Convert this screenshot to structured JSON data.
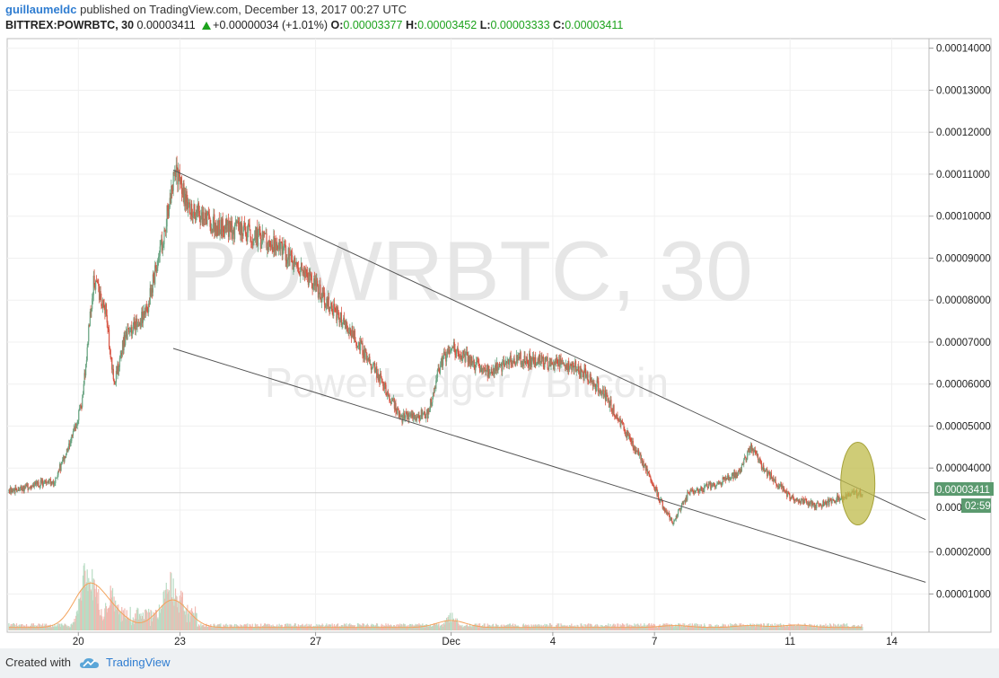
{
  "header": {
    "author": "guillaumeldc",
    "published_text": "published on TradingView.com, December 13, 2017 00:27 UTC"
  },
  "symbol_bar": {
    "symbol": "BITTREX:POWRBTC, 30",
    "price": "0.00003411",
    "change": "+0.00000034 (+1.01%)",
    "o_label": "O:",
    "o_value": "0.00003377",
    "h_label": "H:",
    "h_value": "0.00003452",
    "l_label": "L:",
    "l_value": "0.00003333",
    "c_label": "C:",
    "c_value": "0.00003411"
  },
  "watermark": {
    "line1": "POWRBTC, 30",
    "line2": "PowerLedger / Bitcoin"
  },
  "price_tag": {
    "value": "0.00003411",
    "countdown": "02:59",
    "color": "#5b9a6f"
  },
  "chart_data": {
    "type": "candlestick",
    "y_axis": {
      "side": "right",
      "ticks": [
        "0.00014000",
        "0.00013000",
        "0.00012000",
        "0.00011000",
        "0.00010000",
        "0.00009000",
        "0.00008000",
        "0.00007000",
        "0.00006000",
        "0.00005000",
        "0.00004000",
        "0.00002000",
        "0.00001000"
      ],
      "tick_values": [
        0.00014,
        0.00013,
        0.00012,
        0.00011,
        0.0001,
        9e-05,
        8e-05,
        7e-05,
        6e-05,
        5e-05,
        4e-05,
        2e-05,
        1e-05
      ],
      "partial_tick": "0.000",
      "range": [
        9e-07,
        0.0001425
      ]
    },
    "x_axis": {
      "ticks": [
        "20",
        "23",
        "27",
        "Dec",
        "4",
        "7",
        "11",
        "14"
      ],
      "tick_days": [
        20,
        23,
        27,
        31,
        34,
        37,
        41,
        44
      ],
      "range_days": [
        17.9,
        45.1
      ]
    },
    "price_path": [
      [
        17.95,
        3.45e-05
      ],
      [
        18.5,
        3.55e-05
      ],
      [
        19.3,
        3.7e-05
      ],
      [
        19.7,
        4.5e-05
      ],
      [
        20.1,
        5.5e-05
      ],
      [
        20.45,
        8.5e-05
      ],
      [
        20.8,
        7.8e-05
      ],
      [
        21.05,
        6e-05
      ],
      [
        21.4,
        7.2e-05
      ],
      [
        22.0,
        7.7e-05
      ],
      [
        22.5,
        9.5e-05
      ],
      [
        22.85,
        0.000111
      ],
      [
        23.2,
        0.000103
      ],
      [
        24.0,
        9.8e-05
      ],
      [
        25.0,
        9.6e-05
      ],
      [
        26.0,
        9.2e-05
      ],
      [
        27.0,
        8.3e-05
      ],
      [
        28.0,
        7.3e-05
      ],
      [
        28.8,
        6.3e-05
      ],
      [
        29.5,
        5.2e-05
      ],
      [
        30.3,
        5.3e-05
      ],
      [
        30.7,
        6.5e-05
      ],
      [
        31.0,
        6.9e-05
      ],
      [
        31.5,
        6.6e-05
      ],
      [
        32.0,
        6.3e-05
      ],
      [
        33.0,
        6.6e-05
      ],
      [
        34.0,
        6.5e-05
      ],
      [
        34.7,
        6.4e-05
      ],
      [
        35.5,
        5.8e-05
      ],
      [
        36.2,
        4.8e-05
      ],
      [
        36.8,
        3.9e-05
      ],
      [
        37.3,
        3e-05
      ],
      [
        37.55,
        2.7e-05
      ],
      [
        38.0,
        3.4e-05
      ],
      [
        38.8,
        3.6e-05
      ],
      [
        39.5,
        3.9e-05
      ],
      [
        39.85,
        4.5e-05
      ],
      [
        40.2,
        4e-05
      ],
      [
        41.0,
        3.3e-05
      ],
      [
        41.8,
        3.1e-05
      ],
      [
        42.5,
        3.3e-05
      ],
      [
        43.0,
        3.4e-05
      ],
      [
        43.15,
        3.41e-05
      ]
    ],
    "volume_spikes": [
      [
        20.2,
        0.45
      ],
      [
        20.4,
        0.38
      ],
      [
        21.0,
        0.28
      ],
      [
        22.7,
        0.4
      ],
      [
        23.0,
        0.18
      ],
      [
        31.0,
        0.14
      ],
      [
        37.6,
        0.04
      ],
      [
        39.8,
        0.04
      ],
      [
        41.2,
        0.05
      ]
    ],
    "trendlines": [
      {
        "start": [
          22.8,
          0.000111
        ],
        "end": [
          45.0,
          2.77e-05
        ]
      },
      {
        "start": [
          22.8,
          6.85e-05
        ],
        "end": [
          45.0,
          1.28e-05
        ]
      }
    ],
    "highlight_ellipse": {
      "center": [
        43.0,
        3.63e-05
      ],
      "color": "#bfbb4a"
    },
    "last_price": 3.411e-05,
    "up_color": "#6ba583",
    "down_color": "#d75442"
  },
  "footer": {
    "created_with": "Created with",
    "brand": "TradingView"
  }
}
